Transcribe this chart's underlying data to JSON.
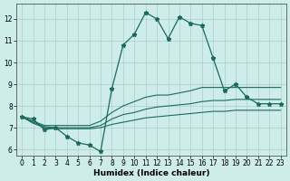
{
  "xlabel": "Humidex (Indice chaleur)",
  "bg_color": "#ceecea",
  "grid_color": "#b0d4d0",
  "line_color": "#1a6b5a",
  "xlim": [
    -0.5,
    23.5
  ],
  "ylim": [
    5.7,
    12.7
  ],
  "x_ticks": [
    0,
    1,
    2,
    3,
    4,
    5,
    6,
    7,
    8,
    9,
    10,
    11,
    12,
    13,
    14,
    15,
    16,
    17,
    18,
    19,
    20,
    21,
    22,
    23
  ],
  "y_ticks": [
    6,
    7,
    8,
    9,
    10,
    11,
    12
  ],
  "main_series": [
    7.5,
    7.4,
    6.9,
    7.0,
    6.6,
    6.3,
    6.2,
    5.9,
    8.8,
    10.8,
    11.3,
    12.3,
    12.0,
    11.1,
    12.1,
    11.8,
    11.7,
    10.2,
    8.7,
    9.0,
    8.4,
    8.1,
    8.1,
    8.1
  ],
  "upper_series": [
    7.5,
    7.3,
    7.1,
    7.1,
    7.1,
    7.1,
    7.1,
    7.3,
    7.7,
    8.0,
    8.2,
    8.4,
    8.5,
    8.5,
    8.6,
    8.7,
    8.85,
    8.85,
    8.85,
    8.85,
    8.85,
    8.85,
    8.85,
    8.85
  ],
  "mid_series": [
    7.5,
    7.25,
    7.05,
    7.0,
    7.0,
    7.0,
    7.0,
    7.1,
    7.4,
    7.6,
    7.7,
    7.85,
    7.95,
    8.0,
    8.05,
    8.1,
    8.2,
    8.25,
    8.25,
    8.3,
    8.3,
    8.3,
    8.3,
    8.3
  ],
  "lower_series": [
    7.5,
    7.2,
    7.0,
    6.95,
    6.95,
    6.95,
    6.95,
    7.0,
    7.15,
    7.25,
    7.35,
    7.45,
    7.5,
    7.55,
    7.6,
    7.65,
    7.7,
    7.75,
    7.75,
    7.8,
    7.8,
    7.8,
    7.8,
    7.8
  ],
  "xlabel_fontsize": 6.5,
  "tick_fontsize": 5.5,
  "linewidth_main": 0.9,
  "linewidth_smooth": 0.8,
  "marker_size": 3.5
}
